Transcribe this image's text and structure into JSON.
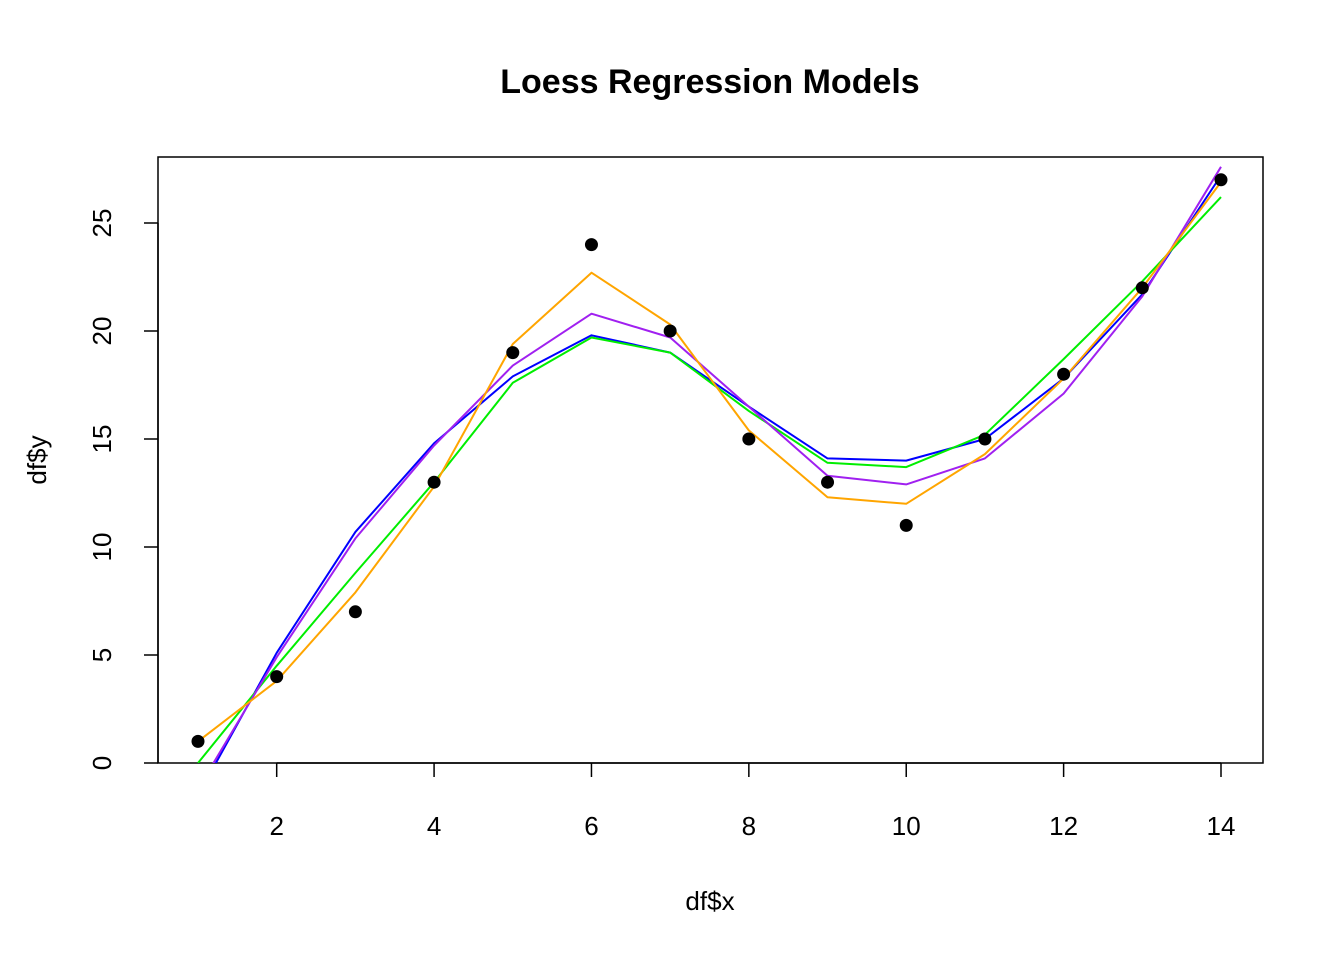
{
  "chart_data": {
    "type": "scatter",
    "title": "Loess Regression Models",
    "xlabel": "df$x",
    "ylabel": "df$y",
    "xlim": [
      0.5,
      14.5
    ],
    "ylim": [
      0,
      28
    ],
    "xticks": [
      2,
      4,
      6,
      8,
      10,
      12,
      14
    ],
    "yticks": [
      0,
      5,
      10,
      15,
      20,
      25
    ],
    "grid": false,
    "points": {
      "x": [
        1,
        2,
        3,
        4,
        5,
        6,
        7,
        8,
        9,
        10,
        11,
        12,
        13,
        14
      ],
      "y": [
        1,
        4,
        7,
        13,
        19,
        24,
        20,
        15,
        13,
        11,
        15,
        18,
        22,
        27
      ],
      "color": "#000000"
    },
    "series": [
      {
        "color": "#0000FF",
        "x": [
          1,
          2,
          3,
          4,
          5,
          6,
          7,
          8,
          9,
          10,
          11,
          12,
          13,
          14
        ],
        "y": [
          -1.5,
          5.1,
          10.7,
          14.8,
          17.9,
          19.8,
          19.0,
          16.5,
          14.1,
          14.0,
          15.0,
          17.8,
          21.7,
          27.2
        ]
      },
      {
        "color": "#00EE00",
        "x": [
          1,
          2,
          3,
          4,
          5,
          6,
          7,
          8,
          9,
          10,
          11,
          12,
          13,
          14
        ],
        "y": [
          0.0,
          4.5,
          8.8,
          13.0,
          17.6,
          19.7,
          19.0,
          16.3,
          13.9,
          13.7,
          15.2,
          18.7,
          22.3,
          26.2
        ]
      },
      {
        "color": "#A020F0",
        "x": [
          1,
          2,
          3,
          4,
          5,
          6,
          7,
          8,
          9,
          10,
          11,
          12,
          13,
          14
        ],
        "y": [
          -1.2,
          4.9,
          10.4,
          14.7,
          18.4,
          20.8,
          19.7,
          16.5,
          13.3,
          12.9,
          14.1,
          17.1,
          21.6,
          27.6
        ]
      },
      {
        "color": "#FFA500",
        "x": [
          1,
          2,
          3,
          4,
          5,
          6,
          7,
          8,
          9,
          10,
          11,
          12,
          13,
          14
        ],
        "y": [
          1.0,
          3.8,
          7.9,
          12.8,
          19.4,
          22.7,
          20.3,
          15.4,
          12.3,
          12.0,
          14.3,
          17.8,
          22.0,
          26.9
        ]
      }
    ]
  }
}
